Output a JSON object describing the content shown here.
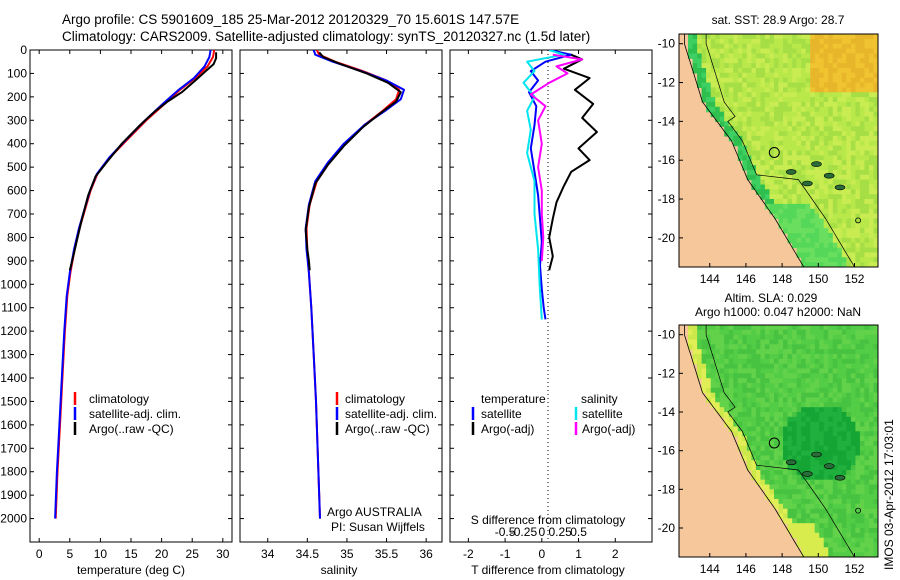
{
  "title": {
    "line1": "Argo profile: CS 5901609_185 25-Mar-2012 20120329_70 15.601S 147.57E",
    "line2": "Climatology: CARS2009. Satellite-adjusted climatology: synTS_20120327.nc (1.5d later)"
  },
  "side_label": "IMOS 03-Apr-2012 17:03:01",
  "colors": {
    "climatology": "#ff0000",
    "satellite": "#0000ff",
    "argo": "#000000",
    "sal_satellite": "#00e5ee",
    "sal_argo": "#ff00ff",
    "land": "#f5c79b"
  },
  "chart_data": [
    {
      "type": "line",
      "name": "temperature-profile",
      "xlabel": "temperature (deg C)",
      "xlim": [
        -1.5,
        31.5
      ],
      "xticks": [
        0,
        5,
        10,
        15,
        20,
        25,
        30
      ],
      "ylim": [
        0,
        2100
      ],
      "yticks": [
        0,
        100,
        200,
        300,
        400,
        500,
        600,
        700,
        800,
        900,
        1000,
        1100,
        1200,
        1300,
        1400,
        1500,
        1600,
        1700,
        1800,
        1900,
        2000
      ],
      "legend": [
        "climatology",
        "satellite-adj. clim.",
        "Argo(..raw -QC)"
      ],
      "series": [
        {
          "name": "climatology",
          "points": [
            [
              28.6,
              0
            ],
            [
              28.4,
              30
            ],
            [
              27.5,
              70
            ],
            [
              25.5,
              120
            ],
            [
              23,
              170
            ],
            [
              20.5,
              230
            ],
            [
              17.5,
              300
            ],
            [
              14.5,
              380
            ],
            [
              11.5,
              460
            ],
            [
              9.5,
              530
            ],
            [
              8.4,
              600
            ],
            [
              7.5,
              680
            ],
            [
              6.6,
              760
            ],
            [
              5.8,
              850
            ],
            [
              5.1,
              950
            ],
            [
              4.6,
              1050
            ],
            [
              4.2,
              1200
            ],
            [
              3.8,
              1400
            ],
            [
              3.4,
              1600
            ],
            [
              3.0,
              1800
            ],
            [
              2.7,
              2000
            ]
          ]
        },
        {
          "name": "satellite-adj. clim.",
          "points": [
            [
              28.0,
              0
            ],
            [
              27.8,
              30
            ],
            [
              27.0,
              70
            ],
            [
              25.3,
              120
            ],
            [
              22.8,
              170
            ],
            [
              20.2,
              230
            ],
            [
              17.3,
              300
            ],
            [
              14.3,
              380
            ],
            [
              11.4,
              460
            ],
            [
              9.4,
              530
            ],
            [
              8.3,
              600
            ],
            [
              7.4,
              680
            ],
            [
              6.5,
              760
            ],
            [
              5.7,
              850
            ],
            [
              5.0,
              950
            ],
            [
              4.5,
              1050
            ],
            [
              4.1,
              1200
            ],
            [
              3.7,
              1400
            ],
            [
              3.3,
              1600
            ],
            [
              2.9,
              1800
            ],
            [
              2.6,
              2000
            ]
          ]
        },
        {
          "name": "Argo(..raw -QC)",
          "points": [
            [
              28.9,
              10
            ],
            [
              28.9,
              35
            ],
            [
              28.5,
              60
            ],
            [
              27.2,
              90
            ],
            [
              25.5,
              130
            ],
            [
              23.3,
              180
            ],
            [
              21,
              220
            ],
            [
              19,
              260
            ],
            [
              16.5,
              320
            ],
            [
              13.5,
              400
            ],
            [
              11,
              480
            ],
            [
              9.2,
              540
            ],
            [
              8.0,
              620
            ],
            [
              7.0,
              720
            ],
            [
              6.1,
              820
            ],
            [
              5.4,
              900
            ],
            [
              5.0,
              940
            ]
          ]
        }
      ]
    },
    {
      "type": "line",
      "name": "salinity-profile",
      "xlabel": "salinity",
      "xlim": [
        33.65,
        36.2
      ],
      "xticks": [
        34,
        34.5,
        35,
        35.5,
        36
      ],
      "ylim": [
        0,
        2100
      ],
      "legend": [
        "climatology",
        "satellite-adj. clim.",
        "Argo(..raw -QC)"
      ],
      "annotation": [
        "Argo AUSTRALIA",
        "PI: Susan Wijffels"
      ],
      "series": [
        {
          "name": "climatology",
          "points": [
            [
              34.62,
              0
            ],
            [
              34.65,
              20
            ],
            [
              34.85,
              50
            ],
            [
              35.2,
              90
            ],
            [
              35.5,
              130
            ],
            [
              35.66,
              170
            ],
            [
              35.62,
              210
            ],
            [
              35.45,
              260
            ],
            [
              35.22,
              320
            ],
            [
              34.98,
              400
            ],
            [
              34.78,
              480
            ],
            [
              34.62,
              560
            ],
            [
              34.53,
              660
            ],
            [
              34.49,
              760
            ],
            [
              34.5,
              850
            ],
            [
              34.52,
              950
            ],
            [
              34.55,
              1100
            ],
            [
              34.58,
              1300
            ],
            [
              34.61,
              1500
            ],
            [
              34.63,
              1700
            ],
            [
              34.65,
              1900
            ],
            [
              34.66,
              2000
            ]
          ]
        },
        {
          "name": "satellite-adj. clim.",
          "points": [
            [
              34.58,
              0
            ],
            [
              34.6,
              20
            ],
            [
              34.82,
              50
            ],
            [
              35.18,
              90
            ],
            [
              35.5,
              130
            ],
            [
              35.72,
              170
            ],
            [
              35.68,
              210
            ],
            [
              35.48,
              260
            ],
            [
              35.22,
              320
            ],
            [
              34.96,
              400
            ],
            [
              34.76,
              480
            ],
            [
              34.6,
              560
            ],
            [
              34.52,
              660
            ],
            [
              34.48,
              760
            ],
            [
              34.49,
              850
            ],
            [
              34.52,
              950
            ],
            [
              34.55,
              1100
            ],
            [
              34.58,
              1300
            ],
            [
              34.61,
              1500
            ],
            [
              34.63,
              1700
            ],
            [
              34.65,
              1900
            ],
            [
              34.66,
              2000
            ]
          ]
        },
        {
          "name": "Argo(..raw -QC)",
          "points": [
            [
              34.65,
              10
            ],
            [
              34.7,
              30
            ],
            [
              34.92,
              60
            ],
            [
              35.25,
              100
            ],
            [
              35.52,
              140
            ],
            [
              35.68,
              180
            ],
            [
              35.62,
              220
            ],
            [
              35.42,
              270
            ],
            [
              35.2,
              330
            ],
            [
              34.96,
              410
            ],
            [
              34.76,
              490
            ],
            [
              34.6,
              570
            ],
            [
              34.52,
              670
            ],
            [
              34.48,
              770
            ],
            [
              34.5,
              850
            ],
            [
              34.52,
              900
            ],
            [
              34.53,
              940
            ]
          ]
        }
      ]
    },
    {
      "type": "line",
      "name": "difference-profile",
      "xlabel": "T difference from climatology",
      "xlabel_top": "S difference from climatology",
      "xlim": [
        -2.5,
        3.0
      ],
      "xticks": [
        -2,
        -1,
        0,
        1,
        2
      ],
      "sticks": [
        -0.5,
        -0.25,
        0,
        0.25,
        0.5
      ],
      "ylim": [
        0,
        2100
      ],
      "legend_left_title": "temperature",
      "legend_right_title": "salinity",
      "legend": [
        "satellite",
        "Argo(-adj)",
        "satellite",
        "Argo(-adj)"
      ],
      "series": [
        {
          "name": "T satellite",
          "points": [
            [
              0.2,
              0
            ],
            [
              0.8,
              20
            ],
            [
              0.1,
              50
            ],
            [
              -0.3,
              90
            ],
            [
              -0.1,
              130
            ],
            [
              -0.35,
              180
            ],
            [
              -0.15,
              240
            ],
            [
              -0.2,
              320
            ],
            [
              -0.3,
              420
            ],
            [
              -0.2,
              520
            ],
            [
              -0.1,
              620
            ],
            [
              -0.05,
              720
            ],
            [
              0,
              820
            ],
            [
              -0.05,
              920
            ],
            [
              0,
              1020
            ],
            [
              0.05,
              1100
            ],
            [
              0.1,
              1150
            ]
          ]
        },
        {
          "name": "T Argo(-adj)",
          "points": [
            [
              0.8,
              20
            ],
            [
              1.1,
              40
            ],
            [
              0.6,
              80
            ],
            [
              1.3,
              120
            ],
            [
              0.9,
              170
            ],
            [
              1.4,
              230
            ],
            [
              1.1,
              290
            ],
            [
              1.5,
              350
            ],
            [
              1.0,
              420
            ],
            [
              1.3,
              470
            ],
            [
              0.8,
              520
            ],
            [
              0.6,
              580
            ],
            [
              0.4,
              650
            ],
            [
              0.3,
              720
            ],
            [
              0.2,
              800
            ],
            [
              0.3,
              880
            ],
            [
              0.2,
              940
            ]
          ]
        },
        {
          "name": "S satellite",
          "points": [
            [
              0.1,
              0
            ],
            [
              0.3,
              20
            ],
            [
              -0.2,
              50
            ],
            [
              -0.1,
              90
            ],
            [
              -0.25,
              140
            ],
            [
              -0.1,
              200
            ],
            [
              -0.2,
              260
            ],
            [
              -0.15,
              340
            ],
            [
              -0.2,
              440
            ],
            [
              -0.1,
              560
            ],
            [
              -0.1,
              700
            ],
            [
              -0.05,
              850
            ],
            [
              -0.03,
              1000
            ],
            [
              0,
              1150
            ]
          ]
        },
        {
          "name": "S Argo(-adj)",
          "points": [
            [
              0.15,
              20
            ],
            [
              0.55,
              40
            ],
            [
              0.2,
              70
            ],
            [
              0.35,
              100
            ],
            [
              0.1,
              140
            ],
            [
              -0.15,
              190
            ],
            [
              0.05,
              240
            ],
            [
              -0.05,
              300
            ],
            [
              0,
              400
            ],
            [
              -0.05,
              500
            ],
            [
              0,
              600
            ],
            [
              0,
              700
            ],
            [
              0.02,
              800
            ],
            [
              0,
              900
            ]
          ]
        }
      ]
    },
    {
      "type": "heatmap",
      "name": "sst-map",
      "title": "sat. SST: 28.9 Argo: 28.7",
      "xticks": [
        144,
        146,
        148,
        150,
        152
      ],
      "yticks": [
        -10,
        -12,
        -14,
        -16,
        -18,
        -20
      ],
      "xlim": [
        142.3,
        153.3
      ],
      "ylim": [
        -21.5,
        -9.5
      ],
      "argo_location": [
        147.57,
        -15.601
      ]
    },
    {
      "type": "heatmap",
      "name": "sla-map",
      "title_line1": "Altim. SLA: 0.029",
      "title_line2": "Argo h1000: 0.047 h2000: NaN",
      "xticks": [
        144,
        146,
        148,
        150,
        152
      ],
      "yticks": [
        -10,
        -12,
        -14,
        -16,
        -18,
        -20
      ],
      "xlim": [
        142.3,
        153.3
      ],
      "ylim": [
        -21.5,
        -9.5
      ],
      "argo_location": [
        147.57,
        -15.601
      ]
    }
  ]
}
